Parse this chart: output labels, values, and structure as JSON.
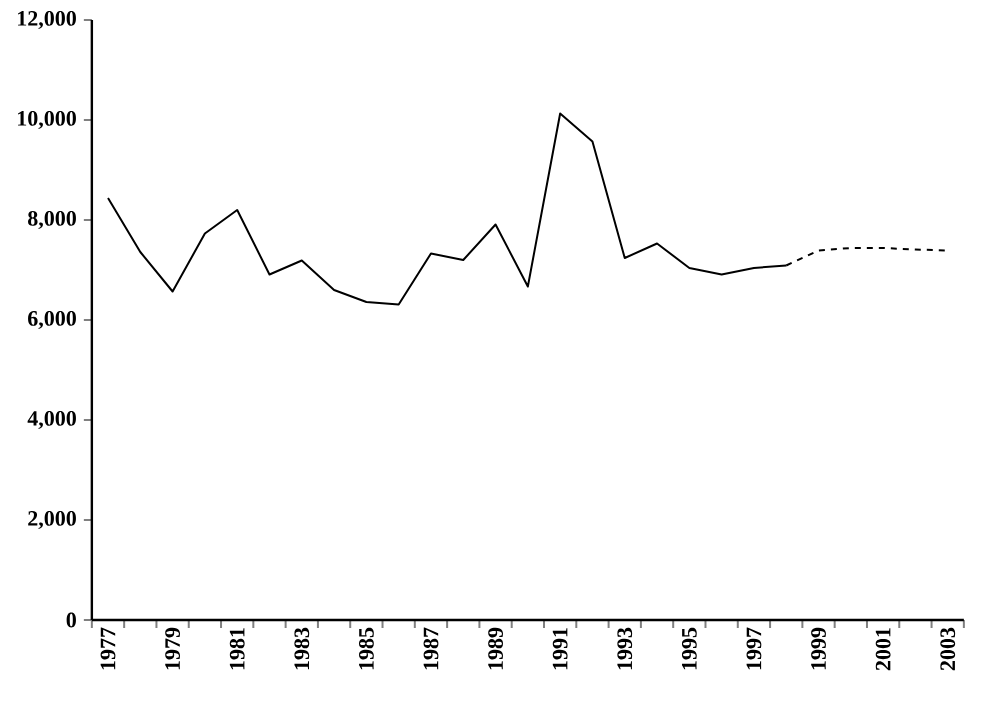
{
  "chart_data": {
    "type": "line",
    "categories": [
      "1977",
      null,
      "1979",
      null,
      "1981",
      null,
      "1983",
      null,
      "1985",
      null,
      "1987",
      null,
      "1989",
      null,
      "1991",
      null,
      "1993",
      null,
      "1995",
      null,
      "1997",
      null,
      "1999",
      null,
      "2001",
      null,
      "2003"
    ],
    "series": [
      {
        "color": "#000000",
        "line_style": "solid",
        "values": [
          8440,
          7360,
          6570,
          7730,
          8200,
          6910,
          7190,
          6600,
          6360,
          6310,
          7330,
          7200,
          7910,
          6670,
          10130,
          9570,
          7240,
          7530,
          7040,
          6910,
          7040,
          7090,
          null,
          null,
          null,
          null,
          null
        ]
      },
      {
        "color": "#000000",
        "line_style": "dashed",
        "values": [
          null,
          null,
          null,
          null,
          null,
          null,
          null,
          null,
          null,
          null,
          null,
          null,
          null,
          null,
          null,
          null,
          null,
          null,
          null,
          null,
          null,
          7090,
          7390,
          7440,
          7440,
          7410,
          7390
        ]
      }
    ],
    "ylim": [
      0,
      12000
    ],
    "yticks": [
      0,
      {
        "value": 2000,
        "label": "2,000"
      },
      {
        "value": 4000,
        "label": "4,000"
      },
      {
        "value": 6000,
        "label": "6,000"
      },
      {
        "value": 8000,
        "label": "8,000"
      },
      {
        "value": 10000,
        "label": "10,000"
      },
      {
        "value": 12000,
        "label": "12,000"
      }
    ],
    "grid": false,
    "marker": "none"
  }
}
